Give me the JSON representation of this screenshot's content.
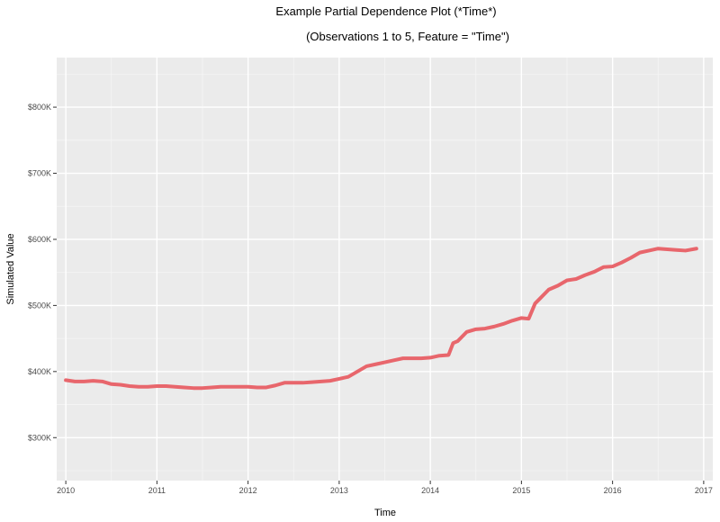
{
  "chart_data": {
    "type": "line",
    "title": "Example Partial Dependence Plot (*Time*)",
    "subtitle": "(Observations 1 to 5, Feature = \"Time\")",
    "xlabel": "Time",
    "ylabel": "Simulated Value",
    "xlim": [
      2009.9,
      2017.1
    ],
    "ylim": [
      235000,
      875000
    ],
    "x_ticks": [
      {
        "value": 2010,
        "label": "2010"
      },
      {
        "value": 2011,
        "label": "2011"
      },
      {
        "value": 2012,
        "label": "2012"
      },
      {
        "value": 2013,
        "label": "2013"
      },
      {
        "value": 2014,
        "label": "2014"
      },
      {
        "value": 2015,
        "label": "2015"
      },
      {
        "value": 2016,
        "label": "2016"
      },
      {
        "value": 2017,
        "label": "2017"
      }
    ],
    "y_ticks": [
      {
        "value": 300000,
        "label": "$300K"
      },
      {
        "value": 400000,
        "label": "$400K"
      },
      {
        "value": 500000,
        "label": "$500K"
      },
      {
        "value": 600000,
        "label": "$600K"
      },
      {
        "value": 700000,
        "label": "$700K"
      },
      {
        "value": 800000,
        "label": "$800K"
      }
    ],
    "grid": true,
    "legend": "none",
    "colors": {
      "line": "#e8666c",
      "panel_background": "#ebebeb",
      "grid_major": "#ffffff",
      "grid_minor": "#f5f5f5",
      "tick_text": "#4d4d4d",
      "text": "#000000"
    },
    "series": [
      {
        "x": [
          2010.0,
          2010.1,
          2010.2,
          2010.3,
          2010.4,
          2010.5,
          2010.6,
          2010.7,
          2010.8,
          2010.9,
          2011.0,
          2011.1,
          2011.2,
          2011.3,
          2011.4,
          2011.5,
          2011.6,
          2011.7,
          2011.8,
          2011.9,
          2012.0,
          2012.1,
          2012.2,
          2012.3,
          2012.4,
          2012.5,
          2012.6,
          2012.7,
          2012.8,
          2012.9,
          2013.0,
          2013.1,
          2013.2,
          2013.3,
          2013.4,
          2013.5,
          2013.6,
          2013.7,
          2013.8,
          2013.9,
          2014.0,
          2014.1,
          2014.2,
          2014.25,
          2014.3,
          2014.4,
          2014.5,
          2014.6,
          2014.7,
          2014.8,
          2014.9,
          2015.0,
          2015.08,
          2015.15,
          2015.2,
          2015.3,
          2015.4,
          2015.5,
          2015.6,
          2015.7,
          2015.8,
          2015.9,
          2016.0,
          2016.1,
          2016.2,
          2016.3,
          2016.4,
          2016.5,
          2016.6,
          2016.7,
          2016.8,
          2016.92
        ],
        "values": [
          387000,
          385000,
          385000,
          386000,
          385000,
          381000,
          380000,
          378000,
          377000,
          377000,
          378000,
          378000,
          377000,
          376000,
          375000,
          375000,
          376000,
          377000,
          377000,
          377000,
          377000,
          376000,
          376000,
          379000,
          383000,
          383000,
          383000,
          384000,
          385000,
          386000,
          389000,
          392000,
          400000,
          408000,
          411000,
          414000,
          417000,
          420000,
          420000,
          420000,
          421000,
          424000,
          425000,
          443000,
          446000,
          460000,
          464000,
          465000,
          468000,
          472000,
          477000,
          481000,
          480000,
          503000,
          510000,
          524000,
          530000,
          538000,
          540000,
          546000,
          551000,
          558000,
          559000,
          565000,
          572000,
          580000,
          583000,
          586000,
          585000,
          584000,
          583000,
          586000
        ]
      }
    ]
  }
}
